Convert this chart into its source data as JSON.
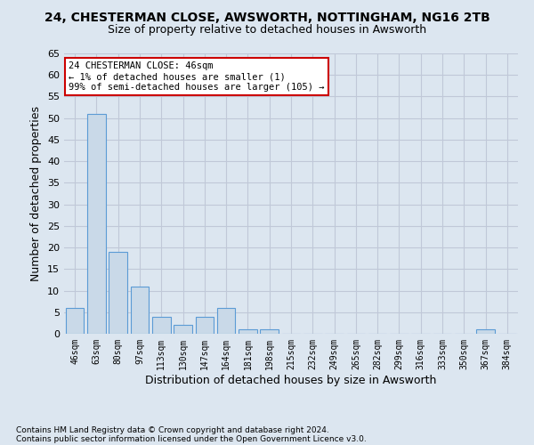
{
  "title1": "24, CHESTERMAN CLOSE, AWSWORTH, NOTTINGHAM, NG16 2TB",
  "title2": "Size of property relative to detached houses in Awsworth",
  "xlabel": "Distribution of detached houses by size in Awsworth",
  "ylabel": "Number of detached properties",
  "categories": [
    "46sqm",
    "63sqm",
    "80sqm",
    "97sqm",
    "113sqm",
    "130sqm",
    "147sqm",
    "164sqm",
    "181sqm",
    "198sqm",
    "215sqm",
    "232sqm",
    "249sqm",
    "265sqm",
    "282sqm",
    "299sqm",
    "316sqm",
    "333sqm",
    "350sqm",
    "367sqm",
    "384sqm"
  ],
  "values": [
    6,
    51,
    19,
    11,
    4,
    2,
    4,
    6,
    1,
    1,
    0,
    0,
    0,
    0,
    0,
    0,
    0,
    0,
    0,
    1,
    0
  ],
  "bar_color": "#c9d9e8",
  "bar_edge_color": "#5b9bd5",
  "annotation_line1": "24 CHESTERMAN CLOSE: 46sqm",
  "annotation_line2": "← 1% of detached houses are smaller (1)",
  "annotation_line3": "99% of semi-detached houses are larger (105) →",
  "annotation_box_color": "#ffffff",
  "annotation_box_edge_color": "#cc0000",
  "ylim": [
    0,
    65
  ],
  "yticks": [
    0,
    5,
    10,
    15,
    20,
    25,
    30,
    35,
    40,
    45,
    50,
    55,
    60,
    65
  ],
  "grid_color": "#c0c8d8",
  "background_color": "#dce6f0",
  "footer1": "Contains HM Land Registry data © Crown copyright and database right 2024.",
  "footer2": "Contains public sector information licensed under the Open Government Licence v3.0."
}
